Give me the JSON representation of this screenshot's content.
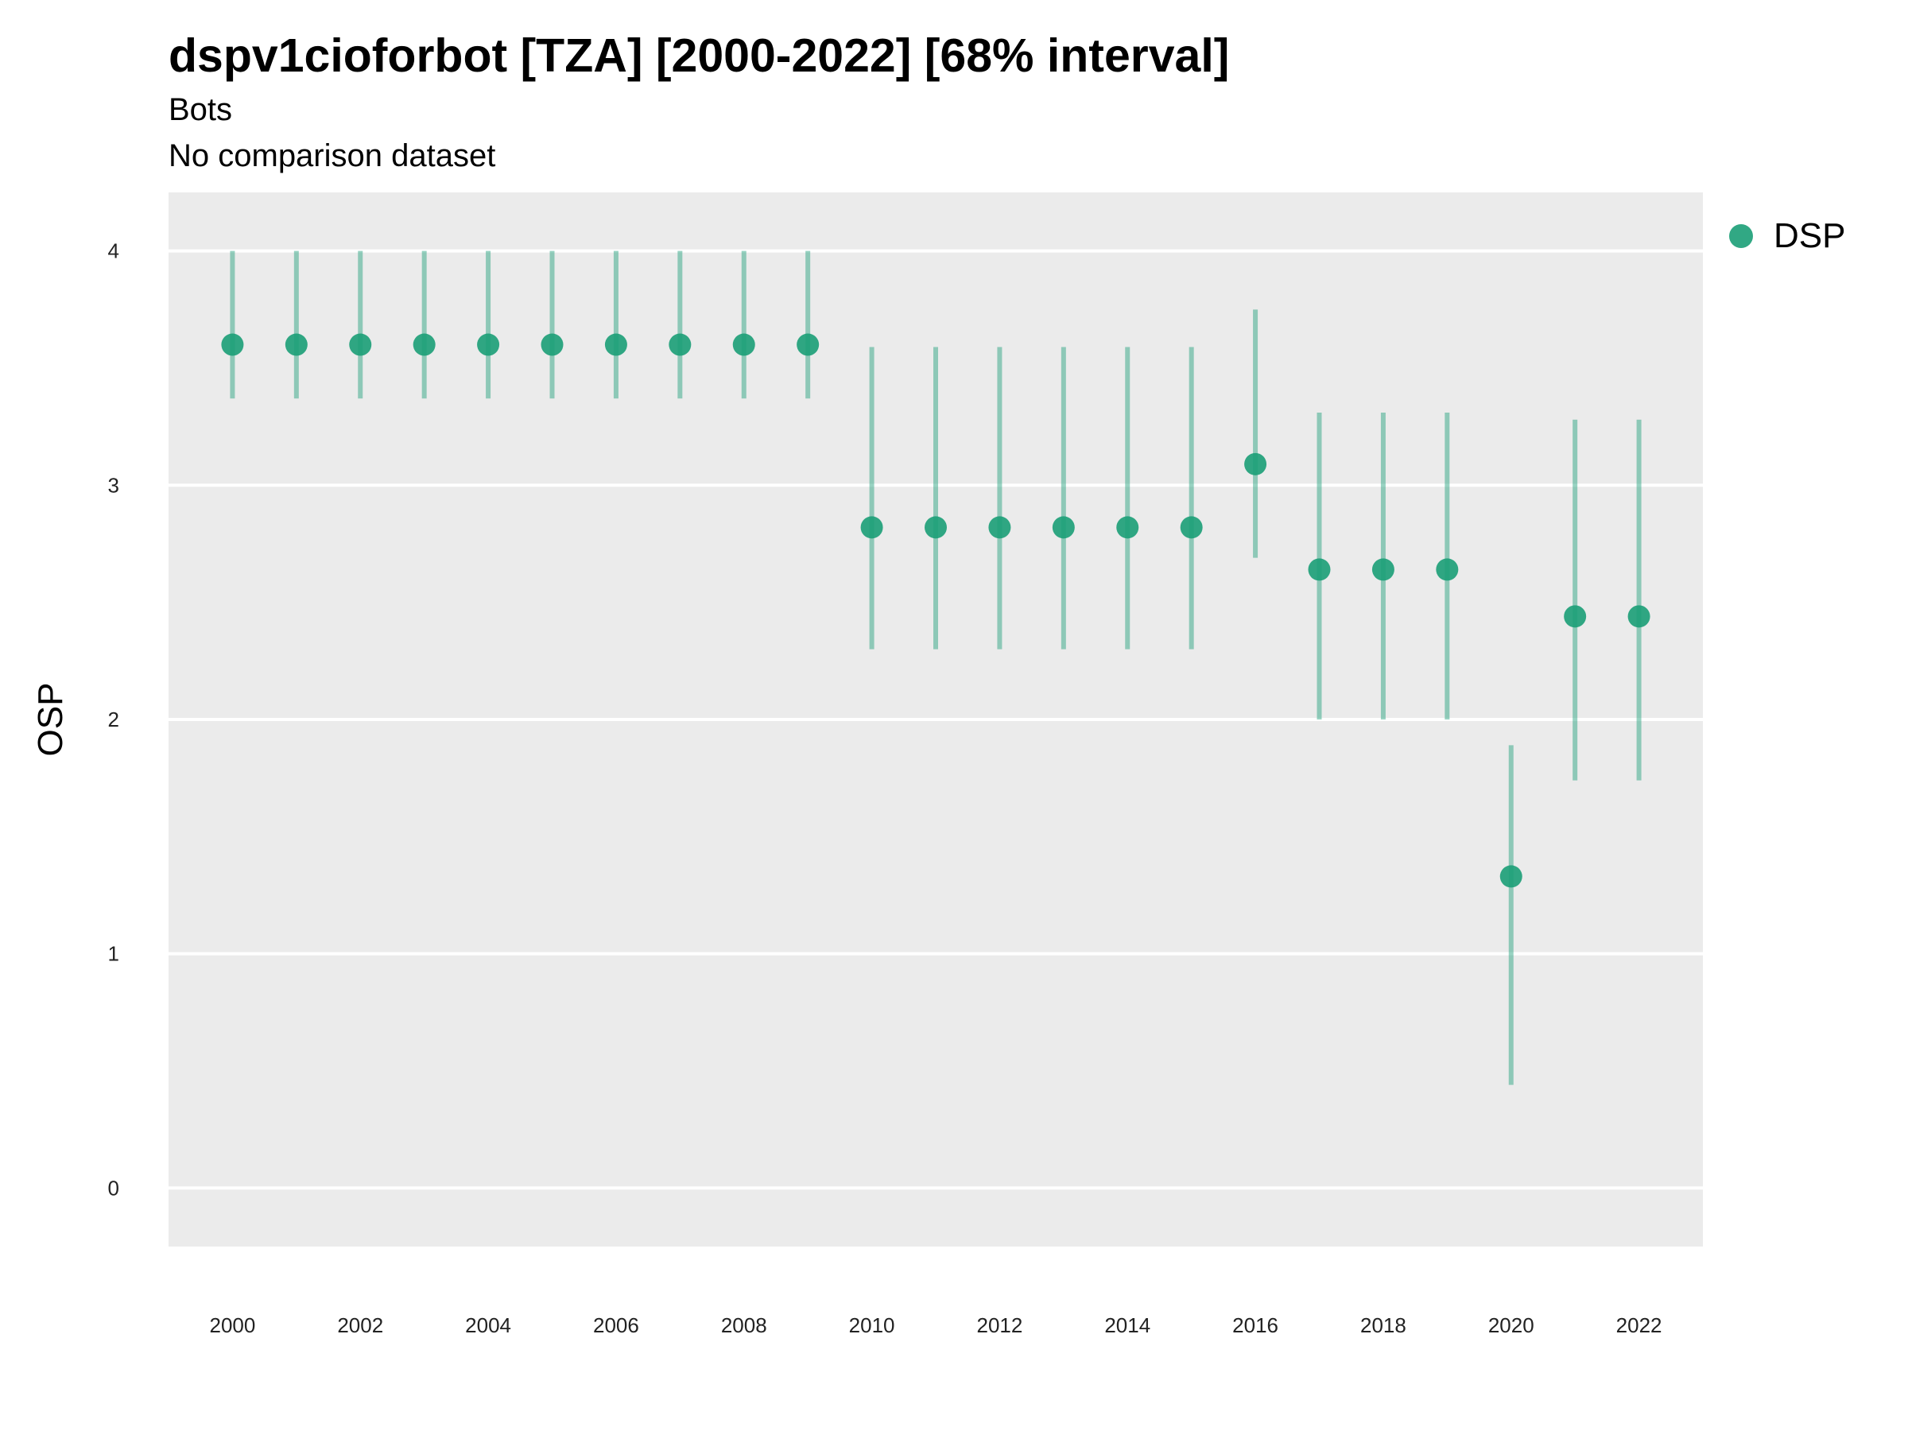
{
  "chart_data": {
    "type": "scatter",
    "title": "dspv1cioforbot [TZA] [2000-2022] [68% interval]",
    "subtitle": "Bots",
    "caption_line": "No comparison dataset",
    "xlabel": "",
    "ylabel": "OSP",
    "ylim": [
      -0.25,
      4.25
    ],
    "xlim": [
      1999,
      2023
    ],
    "yticks": [
      0,
      1,
      2,
      3,
      4
    ],
    "xticks": [
      2000,
      2002,
      2004,
      2006,
      2008,
      2010,
      2012,
      2014,
      2016,
      2018,
      2020,
      2022
    ],
    "grid": true,
    "legend_position": "right",
    "colors": {
      "point": "#1b9e77",
      "panel": "#ebebeb",
      "grid": "#ffffff"
    },
    "series": [
      {
        "name": "DSP",
        "x": [
          2000,
          2001,
          2002,
          2003,
          2004,
          2005,
          2006,
          2007,
          2008,
          2009,
          2010,
          2011,
          2012,
          2013,
          2014,
          2015,
          2016,
          2017,
          2018,
          2019,
          2020,
          2021,
          2022
        ],
        "y": [
          3.6,
          3.6,
          3.6,
          3.6,
          3.6,
          3.6,
          3.6,
          3.6,
          3.6,
          3.6,
          2.82,
          2.82,
          2.82,
          2.82,
          2.82,
          2.82,
          3.09,
          2.64,
          2.64,
          2.64,
          1.33,
          2.44,
          2.44
        ],
        "lower": [
          3.37,
          3.37,
          3.37,
          3.37,
          3.37,
          3.37,
          3.37,
          3.37,
          3.37,
          3.37,
          2.3,
          2.3,
          2.3,
          2.3,
          2.3,
          2.3,
          2.69,
          2.0,
          2.0,
          2.0,
          0.44,
          1.74,
          1.74
        ],
        "upper": [
          4.0,
          4.0,
          4.0,
          4.0,
          4.0,
          4.0,
          4.0,
          4.0,
          4.0,
          4.0,
          3.59,
          3.59,
          3.59,
          3.59,
          3.59,
          3.59,
          3.75,
          3.31,
          3.31,
          3.31,
          1.89,
          3.28,
          3.28
        ]
      }
    ]
  }
}
